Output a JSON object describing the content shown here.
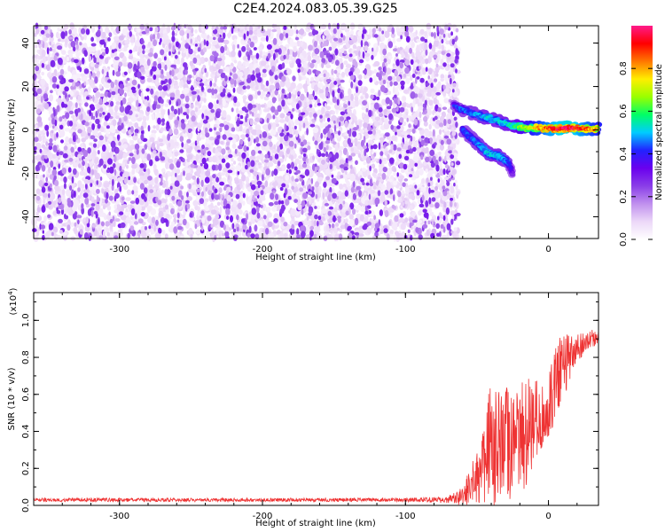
{
  "title": "C2E4.2024.083.05.39.G25",
  "chart_data": [
    {
      "type": "heatmap",
      "xlabel": "Height of straight line (km)",
      "ylabel": "Frequency (Hz)",
      "xlim": [
        -360,
        35
      ],
      "ylim": [
        -50,
        48
      ],
      "xticks": [
        -300,
        -200,
        -100,
        0
      ],
      "xtick_labels": [
        "-300",
        "-200",
        "-100",
        "0"
      ],
      "yticks": [
        -40,
        -20,
        0,
        20,
        40
      ],
      "ytick_labels": [
        "-40",
        "-20",
        "0",
        "20",
        "40"
      ],
      "colorbar": {
        "label": "Normalized spectral amplitude",
        "range": [
          0,
          1
        ],
        "ticks": [
          0.0,
          0.2,
          0.4,
          0.6,
          0.8
        ],
        "tick_labels": [
          "0.0",
          "0.2",
          "0.4",
          "0.6",
          "0.8"
        ],
        "colormap": "rainbow",
        "stops": [
          "#ffffff",
          "#ecd8f8",
          "#c090ee",
          "#8a3ee8",
          "#6a00ee",
          "#2222ff",
          "#00ccff",
          "#00ff66",
          "#99ff00",
          "#ffee00",
          "#ff7700",
          "#ff0000",
          "#ff1a8a"
        ]
      },
      "noise_region": {
        "x": [
          -360,
          -63
        ],
        "y": [
          -50,
          48
        ],
        "amplitude": [
          0.05,
          0.3
        ]
      },
      "signal_tracks": [
        {
          "x": [
            -66,
            -55,
            -45,
            -35,
            -25,
            -15,
            -5,
            5,
            15,
            25,
            35
          ],
          "y": [
            11,
            8,
            6,
            4,
            2,
            1,
            0.8,
            0.5,
            1,
            0.5,
            0.3
          ],
          "amplitude": [
            0.4,
            0.45,
            0.5,
            0.5,
            0.55,
            0.7,
            0.8,
            0.9,
            0.95,
            0.85,
            0.75
          ]
        },
        {
          "x": [
            -60,
            -50,
            -42,
            -35,
            -28,
            -25
          ],
          "y": [
            0,
            -6,
            -11,
            -12,
            -15,
            -20
          ],
          "amplitude": [
            0.4,
            0.45,
            0.5,
            0.5,
            0.45,
            0.3
          ]
        }
      ]
    },
    {
      "type": "line",
      "xlabel": "Height of straight line (km)",
      "ylabel": "SNR (10 * v/v)",
      "y_multiplier_label": "(x10",
      "y_multiplier_exponent": "4",
      "y_multiplier_close": ")",
      "xlim": [
        -360,
        35
      ],
      "ylim": [
        0,
        1.15
      ],
      "xticks": [
        -300,
        -200,
        -100,
        0
      ],
      "xtick_labels": [
        "-300",
        "-200",
        "-100",
        "0"
      ],
      "yticks": [
        0.0,
        0.2,
        0.4,
        0.6,
        0.8,
        1.0
      ],
      "ytick_labels": [
        "0.0",
        "0.2",
        "0.4",
        "0.6",
        "0.8",
        "1.0"
      ],
      "line_color": "#ee3333",
      "series": [
        {
          "x": [
            -360,
            -300,
            -200,
            -100,
            -70,
            -60,
            -50,
            -45,
            -40,
            -35,
            -30,
            -25,
            -20,
            -15,
            -10,
            -5,
            0,
            5,
            10,
            15,
            20,
            25,
            30,
            35
          ],
          "y": [
            0.03,
            0.03,
            0.03,
            0.03,
            0.03,
            0.05,
            0.15,
            0.25,
            0.35,
            0.3,
            0.35,
            0.3,
            0.35,
            0.4,
            0.45,
            0.5,
            0.55,
            0.65,
            0.75,
            0.8,
            0.85,
            0.88,
            0.9,
            0.91
          ],
          "spread": [
            0.01,
            0.01,
            0.01,
            0.01,
            0.02,
            0.05,
            0.15,
            0.25,
            0.35,
            0.35,
            0.35,
            0.3,
            0.3,
            0.3,
            0.25,
            0.2,
            0.18,
            0.2,
            0.2,
            0.12,
            0.08,
            0.06,
            0.05,
            0.04
          ]
        }
      ]
    }
  ]
}
